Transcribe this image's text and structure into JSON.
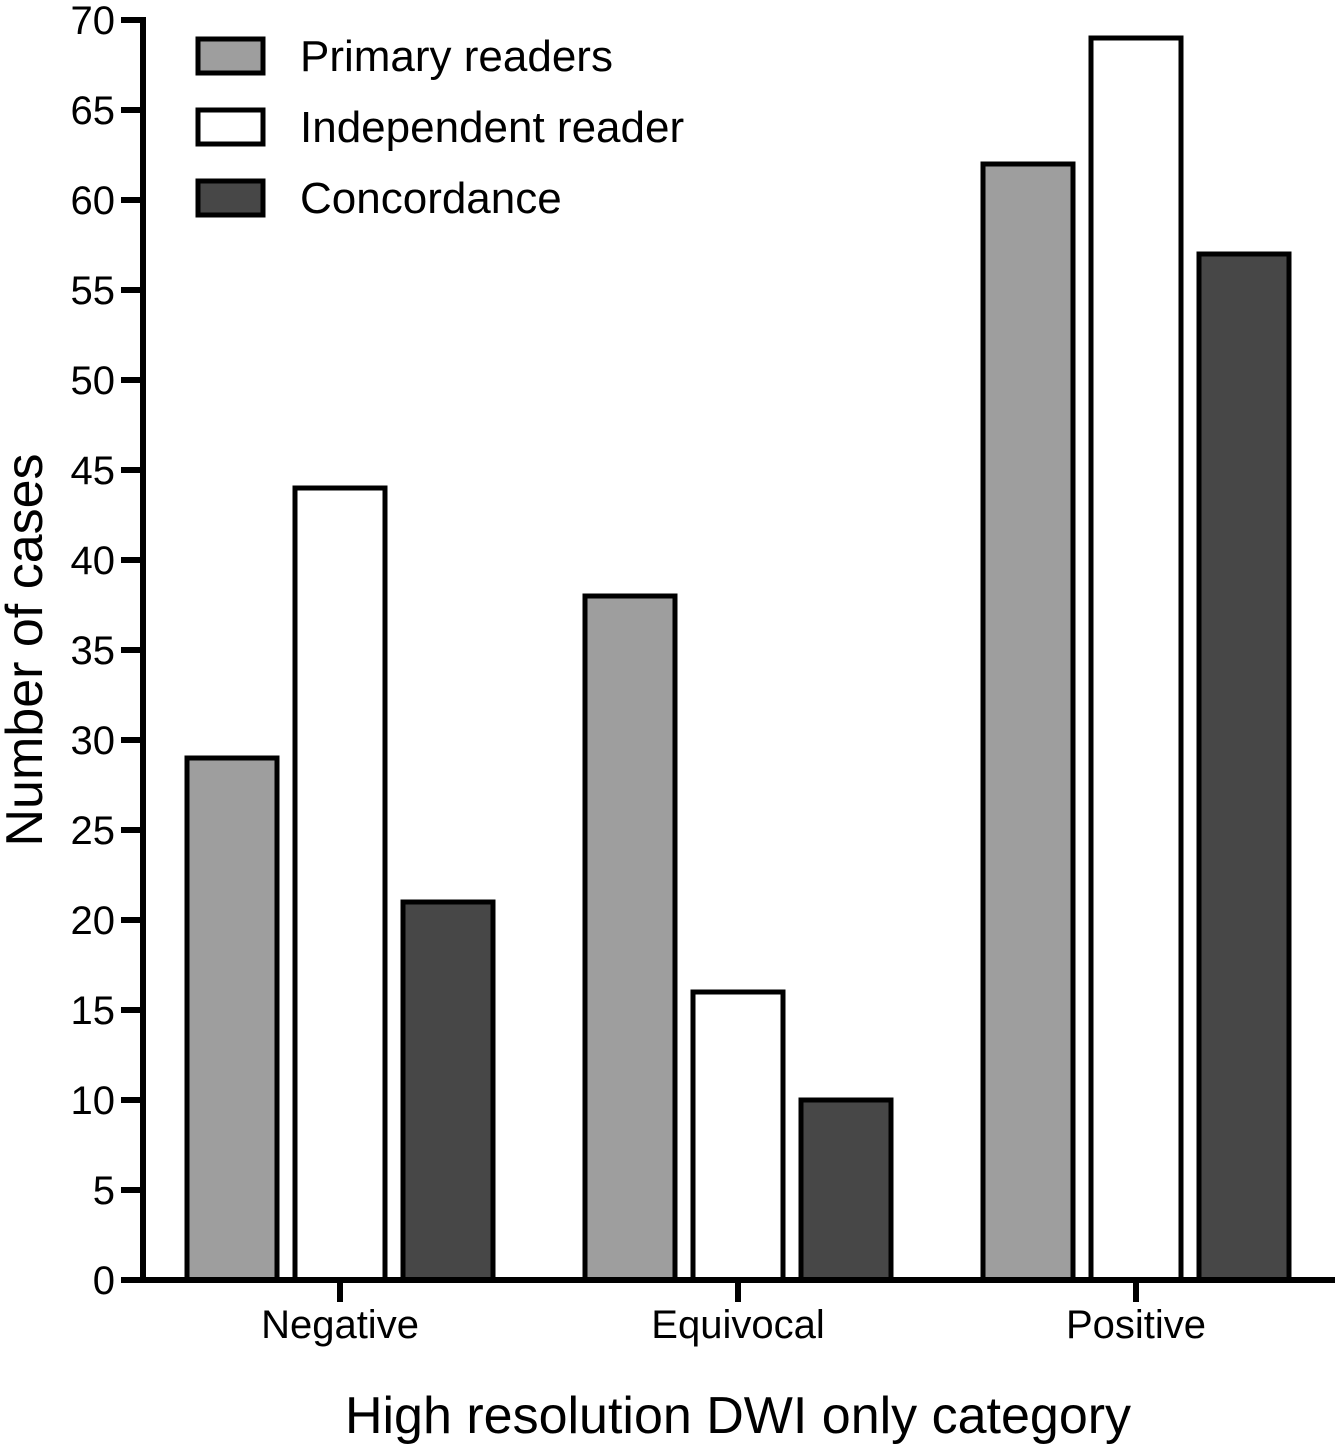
{
  "chart_data": {
    "type": "bar",
    "title": "",
    "xlabel": "High resolution DWI only category",
    "ylabel": "Number of cases",
    "categories": [
      "Negative",
      "Equivocal",
      "Positive"
    ],
    "series": [
      {
        "name": "Primary readers",
        "values": [
          29,
          38,
          62
        ],
        "color": "#9e9e9e"
      },
      {
        "name": "Independent reader",
        "values": [
          44,
          16,
          69
        ],
        "color": "#ffffff"
      },
      {
        "name": "Concordance",
        "values": [
          21,
          10,
          57
        ],
        "color": "#474747"
      }
    ],
    "ylim": [
      0,
      70
    ],
    "yticks": [
      "0",
      "5",
      "10",
      "15",
      "20",
      "25",
      "30",
      "35",
      "40",
      "45",
      "50",
      "55",
      "60",
      "65",
      "70"
    ],
    "grid": false,
    "legend_position": "top-left",
    "bar_outline_color": "#000000"
  }
}
